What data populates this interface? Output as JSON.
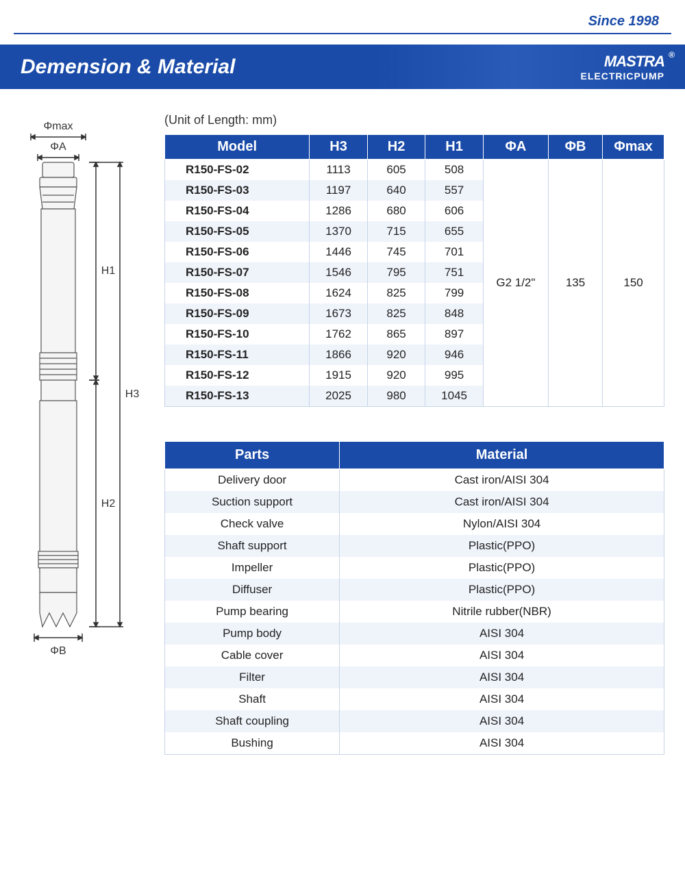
{
  "header": {
    "since": "Since 1998",
    "title": "Demension & Material",
    "brand_logo": "MASTRA",
    "brand_sub": "ELECTRICPUMP"
  },
  "diagram": {
    "labels": {
      "phimax": "Φmax",
      "phiA": "ΦA",
      "phiB": "ΦB",
      "H1": "H1",
      "H2": "H2",
      "H3": "H3"
    }
  },
  "unit_label": "(Unit of Length: mm)",
  "dim_table": {
    "columns": [
      "Model",
      "H3",
      "H2",
      "H1",
      "ΦA",
      "ΦB",
      "Φmax"
    ],
    "rows": [
      [
        "R150-FS-02",
        "1113",
        "605",
        "508"
      ],
      [
        "R150-FS-03",
        "1197",
        "640",
        "557"
      ],
      [
        "R150-FS-04",
        "1286",
        "680",
        "606"
      ],
      [
        "R150-FS-05",
        "1370",
        "715",
        "655"
      ],
      [
        "R150-FS-06",
        "1446",
        "745",
        "701"
      ],
      [
        "R150-FS-07",
        "1546",
        "795",
        "751"
      ],
      [
        "R150-FS-08",
        "1624",
        "825",
        "799"
      ],
      [
        "R150-FS-09",
        "1673",
        "825",
        "848"
      ],
      [
        "R150-FS-10",
        "1762",
        "865",
        "897"
      ],
      [
        "R150-FS-11",
        "1866",
        "920",
        "946"
      ],
      [
        "R150-FS-12",
        "1915",
        "920",
        "995"
      ],
      [
        "R150-FS-13",
        "2025",
        "980",
        "1045"
      ]
    ],
    "phiA": "G2 1/2\"",
    "phiB": "135",
    "phimax": "150"
  },
  "parts_table": {
    "columns": [
      "Parts",
      "Material"
    ],
    "rows": [
      [
        "Delivery door",
        "Cast iron/AISI 304"
      ],
      [
        "Suction support",
        "Cast iron/AISI 304"
      ],
      [
        "Check valve",
        "Nylon/AISI 304"
      ],
      [
        "Shaft support",
        "Plastic(PPO)"
      ],
      [
        "Impeller",
        "Plastic(PPO)"
      ],
      [
        "Diffuser",
        "Plastic(PPO)"
      ],
      [
        "Pump bearing",
        "Nitrile rubber(NBR)"
      ],
      [
        "Pump body",
        "AISI 304"
      ],
      [
        "Cable cover",
        "AISI 304"
      ],
      [
        "Filter",
        "AISI 304"
      ],
      [
        "Shaft",
        "AISI 304"
      ],
      [
        "Shaft coupling",
        "AISI 304"
      ],
      [
        "Bushing",
        "AISI 304"
      ]
    ]
  }
}
